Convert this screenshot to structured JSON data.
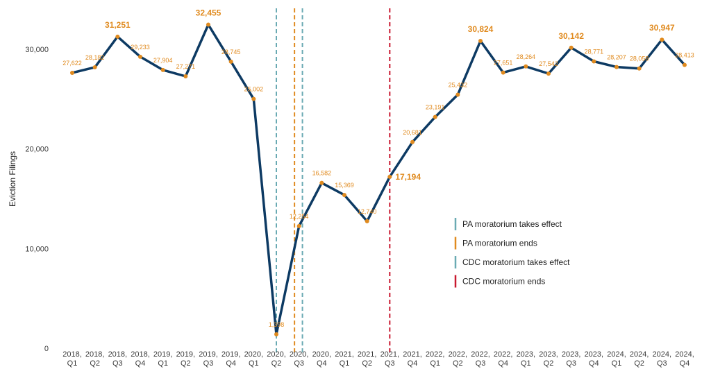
{
  "chart_data": {
    "type": "line",
    "title": "",
    "xlabel": "",
    "ylabel": "Eviction Filings",
    "ylim": [
      0,
      32700
    ],
    "yticks": [
      0,
      10000,
      20000,
      30000
    ],
    "ytick_labels": [
      "0",
      "10,000",
      "20,000",
      "30,000"
    ],
    "grid": false,
    "legend_position": "right-center",
    "categories": [
      [
        "2018,",
        "Q1"
      ],
      [
        "2018,",
        "Q2"
      ],
      [
        "2018,",
        "Q3"
      ],
      [
        "2018,",
        "Q4"
      ],
      [
        "2019,",
        "Q1"
      ],
      [
        "2019,",
        "Q2"
      ],
      [
        "2019,",
        "Q3"
      ],
      [
        "2019,",
        "Q4"
      ],
      [
        "2020,",
        "Q1"
      ],
      [
        "2020,",
        "Q2"
      ],
      [
        "2020,",
        "Q3"
      ],
      [
        "2020,",
        "Q4"
      ],
      [
        "2021,",
        "Q1"
      ],
      [
        "2021,",
        "Q2"
      ],
      [
        "2021,",
        "Q3"
      ],
      [
        "2021,",
        "Q4"
      ],
      [
        "2022,",
        "Q1"
      ],
      [
        "2022,",
        "Q2"
      ],
      [
        "2022,",
        "Q3"
      ],
      [
        "2022,",
        "Q4"
      ],
      [
        "2023,",
        "Q1"
      ],
      [
        "2023,",
        "Q2"
      ],
      [
        "2023,",
        "Q3"
      ],
      [
        "2023,",
        "Q4"
      ],
      [
        "2024,",
        "Q1"
      ],
      [
        "2024,",
        "Q2"
      ],
      [
        "2024,",
        "Q3"
      ],
      [
        "2024,",
        "Q4"
      ]
    ],
    "series": [
      {
        "name": "Eviction Filings",
        "color": "#0d3a63",
        "values": [
          27622,
          28182,
          31251,
          29233,
          27904,
          27271,
          32455,
          28745,
          25002,
          1398,
          12254,
          16582,
          15369,
          12740,
          17194,
          20681,
          23191,
          25432,
          30824,
          27651,
          28264,
          27542,
          30142,
          28771,
          28207,
          28058,
          30947,
          28413
        ],
        "labels": [
          "27,622",
          "28,182",
          "31,251",
          "29,233",
          "27,904",
          "27,271",
          "32,455",
          "28,745",
          "25,002",
          "1,398",
          "12,254",
          "16,582",
          "15,369",
          "12,740",
          "17,194",
          "20,681",
          "23,191",
          "25,432",
          "30,824",
          "27,651",
          "28,264",
          "27,542",
          "30,142",
          "28,771",
          "28,207",
          "28,058",
          "30,947",
          "28,413"
        ],
        "highlighted": [
          2,
          6,
          14,
          18,
          22,
          26
        ]
      }
    ],
    "label_color": "#e08a1e",
    "reference_lines": [
      {
        "label": "PA moratorium takes effect",
        "x_index": 9.0,
        "color": "#6aaab3"
      },
      {
        "label": "PA moratorium ends",
        "x_index": 9.8,
        "color": "#e08a1e"
      },
      {
        "label": "CDC moratorium takes effect",
        "x_index": 10.15,
        "color": "#6aaab3"
      },
      {
        "label": "CDC moratorium ends",
        "x_index": 14.0,
        "color": "#c8182f"
      }
    ]
  }
}
